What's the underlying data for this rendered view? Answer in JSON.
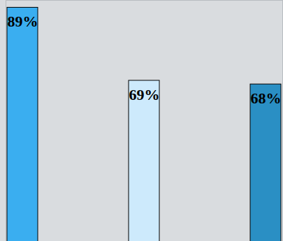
{
  "chart_data": {
    "type": "bar",
    "categories": [
      null,
      null,
      null
    ],
    "values": [
      89,
      69,
      68
    ],
    "value_labels": [
      "89%",
      "69%",
      "68%"
    ],
    "colors": [
      "#3aaef0",
      "#cdeafc",
      "#2a8fc4"
    ],
    "ylim": [
      25,
      91
    ],
    "data_labels": true,
    "tick_labels": false
  }
}
